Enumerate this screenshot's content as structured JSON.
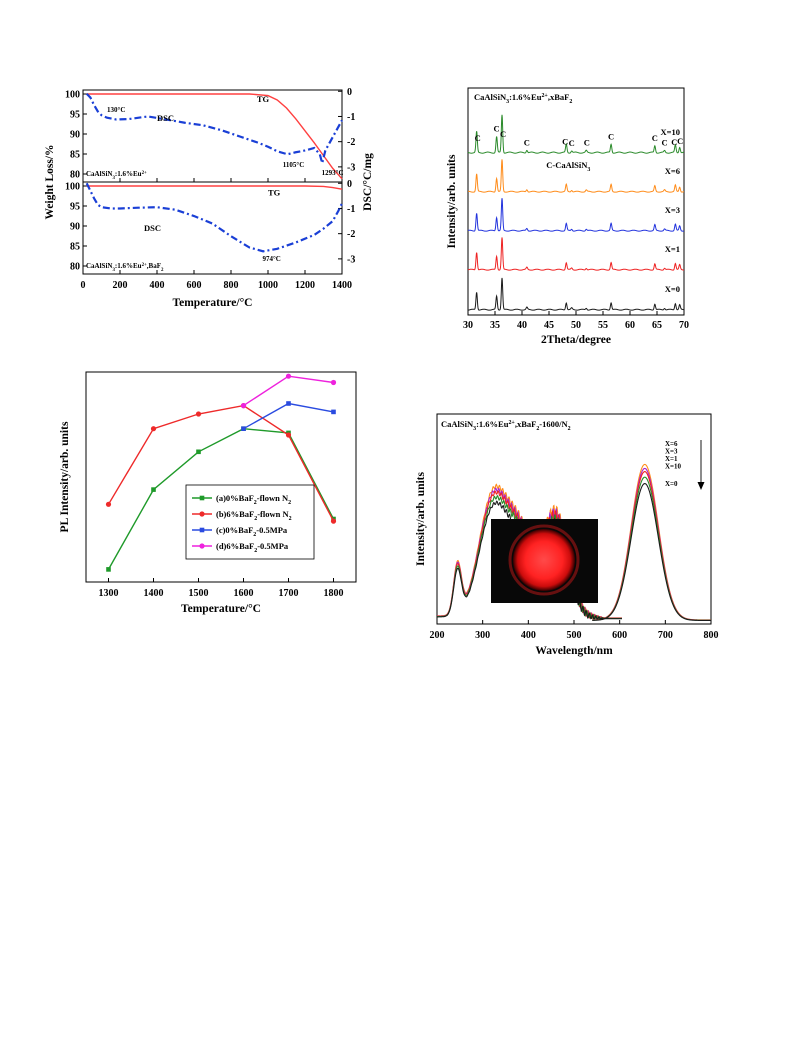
{
  "charts": [
    {
      "id": "tg-dsc",
      "chart_data": {
        "type": "line",
        "xlabel": "Temperature/°C",
        "ylabel_left": "Weight Loss/%",
        "ylabel_right": "DSC/°C/mg",
        "xlim": [
          0,
          1400
        ],
        "x_ticks": [
          0,
          200,
          400,
          600,
          800,
          1000,
          1200,
          1400
        ],
        "panels": [
          {
            "label": "CaAlSiN3:1.6%Eu2+",
            "label_parts": [
              "CaAlSiN",
              "3",
              ":1.6%Eu",
              "2+"
            ],
            "ylim_left": [
              78,
              101
            ],
            "ylim_right": [
              -3.6,
              0.05
            ],
            "left_ticks": [
              80,
              85,
              90,
              95,
              100
            ],
            "right_ticks": [
              0,
              -1,
              -2,
              -3
            ],
            "series": [
              {
                "name": "TG",
                "color": "#ff4040",
                "axis": "left",
                "style": "solid",
                "x": [
                  20,
                  300,
                  600,
                  900,
                  1000,
                  1050,
                  1100,
                  1150,
                  1200,
                  1250,
                  1300,
                  1350,
                  1400
                ],
                "y": [
                  100,
                  100,
                  100,
                  100,
                  99.6,
                  98.5,
                  96.5,
                  93.8,
                  90.8,
                  87.8,
                  84.6,
                  81.4,
                  78.8
                ]
              },
              {
                "name": "DSC",
                "color": "#1a3fd6",
                "axis": "right",
                "style": "dashdot",
                "x": [
                  20,
                  40,
                  60,
                  80,
                  100,
                  130,
                  180,
                  250,
                  350,
                  450,
                  550,
                  650,
                  750,
                  850,
                  950,
                  1000,
                  1050,
                  1105,
                  1150,
                  1200,
                  1250,
                  1280,
                  1293,
                  1310,
                  1340,
                  1370,
                  1400
                ],
                "y": [
                  -0.1,
                  -0.25,
                  -0.55,
                  -0.8,
                  -0.95,
                  -1.05,
                  -1.12,
                  -1.1,
                  -1.0,
                  -1.12,
                  -1.25,
                  -1.35,
                  -1.55,
                  -1.8,
                  -2.05,
                  -2.2,
                  -2.38,
                  -2.5,
                  -2.42,
                  -2.35,
                  -2.25,
                  -2.5,
                  -2.85,
                  -2.35,
                  -1.95,
                  -1.55,
                  -1.15
                ]
              }
            ],
            "annotations": [
              {
                "text": "130°C",
                "x": 130,
                "y": 95.5,
                "axis": "left"
              },
              {
                "text": "1105°C",
                "x": 1080,
                "y": 81.8,
                "axis": "left"
              },
              {
                "text": "1293°C",
                "x": 1290,
                "y": 79.8,
                "axis": "left"
              },
              {
                "text": "DSC",
                "x": 400,
                "y": 93.2,
                "axis": "left",
                "color": "#1a3fd6"
              },
              {
                "text": "TG",
                "x": 940,
                "y": 98,
                "axis": "left",
                "color": "#ff4040"
              }
            ]
          },
          {
            "label": "CaAlSiN3:1.6%Eu2+,BaF2",
            "label_parts": [
              "CaAlSiN",
              "3",
              ":1.6%Eu",
              "2+",
              ",BaF",
              "2"
            ],
            "ylim_left": [
              78,
              101
            ],
            "ylim_right": [
              -3.6,
              0.05
            ],
            "left_ticks": [
              80,
              85,
              90,
              95,
              100
            ],
            "right_ticks": [
              0,
              -1,
              -2,
              -3
            ],
            "series": [
              {
                "name": "TG",
                "color": "#ff4040",
                "axis": "left",
                "style": "solid",
                "x": [
                  20,
                  300,
                  600,
                  900,
                  1200,
                  1300,
                  1350,
                  1400
                ],
                "y": [
                  100,
                  100,
                  100,
                  100,
                  100,
                  99.9,
                  99.6,
                  99.2
                ]
              },
              {
                "name": "DSC",
                "color": "#1a3fd6",
                "axis": "right",
                "style": "dashdot",
                "x": [
                  20,
                  40,
                  60,
                  80,
                  100,
                  150,
                  200,
                  300,
                  400,
                  500,
                  600,
                  700,
                  800,
                  900,
                  974,
                  1050,
                  1150,
                  1250,
                  1300,
                  1350,
                  1380,
                  1400
                ],
                "y": [
                  0,
                  -0.3,
                  -0.6,
                  -0.85,
                  -0.95,
                  -1.0,
                  -1.0,
                  -0.97,
                  -0.95,
                  -1.05,
                  -1.3,
                  -1.6,
                  -2.1,
                  -2.55,
                  -2.7,
                  -2.6,
                  -2.35,
                  -2.05,
                  -1.8,
                  -1.5,
                  -1.1,
                  -0.8
                ]
              }
            ],
            "annotations": [
              {
                "text": "974°C",
                "x": 970,
                "y": 81.2,
                "axis": "left"
              },
              {
                "text": "DSC",
                "x": 330,
                "y": 88.7,
                "axis": "left",
                "color": "#1a3fd6"
              },
              {
                "text": "TG",
                "x": 1000,
                "y": 97.6,
                "axis": "left",
                "color": "#ff4040"
              }
            ]
          }
        ]
      }
    },
    {
      "id": "xrd",
      "chart_data": {
        "type": "line",
        "xlabel": "2Theta/degree",
        "ylabel": "Intensity/arb. units",
        "xlim": [
          30,
          70
        ],
        "x_ticks": [
          30,
          35,
          40,
          45,
          50,
          55,
          60,
          65,
          70
        ],
        "title_parts": [
          "CaAlSiN",
          "3",
          ":1.6%Eu",
          "2+",
          ",xBaF",
          "2"
        ],
        "phase_label_parts": [
          "C-CaAlSiN",
          "3"
        ],
        "peaks": [
          [
            31.6,
            0.55
          ],
          [
            35.3,
            0.42
          ],
          [
            36.3,
            1.0
          ],
          [
            40.9,
            0.07
          ],
          [
            48.2,
            0.22
          ],
          [
            49.2,
            0.05
          ],
          [
            51.9,
            0.05
          ],
          [
            56.5,
            0.22
          ],
          [
            64.6,
            0.18
          ],
          [
            66.4,
            0.05
          ],
          [
            68.4,
            0.2
          ],
          [
            69.2,
            0.15
          ]
        ],
        "c_markers": [
          31.8,
          35.3,
          36.5,
          40.9,
          48.0,
          49.2,
          52.0,
          56.5,
          64.6,
          66.4,
          68.2,
          69.3
        ],
        "series": [
          {
            "name": "X=0",
            "color": "#1a1a1a"
          },
          {
            "name": "X=1",
            "color": "#ee2222"
          },
          {
            "name": "X=3",
            "color": "#2233dd"
          },
          {
            "name": "X=6",
            "color": "#ff8c1a"
          },
          {
            "name": "X=10",
            "color": "#2a8a2a"
          }
        ]
      }
    },
    {
      "id": "pl-temp",
      "chart_data": {
        "type": "line",
        "xlabel": "Temperature/°C",
        "ylabel": "PL Intensity/arb. units",
        "xlim": [
          1250,
          1850
        ],
        "ylim": [
          0,
          1.0
        ],
        "x_ticks": [
          1300,
          1400,
          1500,
          1600,
          1700,
          1800
        ],
        "series": [
          {
            "name": "(a)0%BaF2-flown N2",
            "label_parts": [
              "(a)0%BaF",
              "2",
              "-flown N",
              "2"
            ],
            "color": "#1f9a2a",
            "x": [
              1300,
              1400,
              1500,
              1600,
              1700,
              1800
            ],
            "y": [
              0.06,
              0.44,
              0.62,
              0.73,
              0.71,
              0.3
            ]
          },
          {
            "name": "(b)6%BaF2-flown N2",
            "label_parts": [
              "(b)6%BaF",
              "2",
              "-flown N",
              "2"
            ],
            "color": "#ee2a2a",
            "x": [
              1300,
              1400,
              1500,
              1600,
              1700,
              1800
            ],
            "y": [
              0.37,
              0.73,
              0.8,
              0.84,
              0.7,
              0.29
            ]
          },
          {
            "name": "(c)0%BaF2-0.5MPa",
            "label_parts": [
              "(c)0%BaF",
              "2",
              "-0.5MPa"
            ],
            "color": "#2a4be0",
            "x": [
              1600,
              1700,
              1800
            ],
            "y": [
              0.73,
              0.85,
              0.81
            ]
          },
          {
            "name": "(d)6%BaF2-0.5MPa",
            "label_parts": [
              "(d)6%BaF",
              "2",
              "-0.5MPa"
            ],
            "color": "#ee22dd",
            "x": [
              1600,
              1700,
              1800
            ],
            "y": [
              0.84,
              0.98,
              0.95
            ]
          }
        ]
      }
    },
    {
      "id": "pl-spectra",
      "chart_data": {
        "type": "line",
        "xlabel": "Wavelength/nm",
        "ylabel": "Intensity/arb. units",
        "xlim": [
          200,
          800
        ],
        "ylim": [
          0,
          1.0
        ],
        "x_ticks": [
          200,
          300,
          400,
          500,
          600,
          700,
          800
        ],
        "title_parts": [
          "CaAlSiN",
          "3",
          ":1.6%Eu",
          "2+",
          ",xBaF",
          "2",
          "-1600/N",
          "2"
        ],
        "legend_order": [
          "X=6",
          "X=3",
          "X=1",
          "X=10",
          "X=0"
        ],
        "series": [
          {
            "name": "X=6",
            "color": "#ff8c1a",
            "scale": 1.0
          },
          {
            "name": "X=3",
            "color": "#aa22cc",
            "scale": 0.975
          },
          {
            "name": "X=1",
            "color": "#ee2222",
            "scale": 0.955
          },
          {
            "name": "X=10",
            "color": "#2a8a2a",
            "scale": 0.92
          },
          {
            "name": "X=0",
            "color": "#1a1a1a",
            "scale": 0.88
          }
        ]
      }
    }
  ]
}
